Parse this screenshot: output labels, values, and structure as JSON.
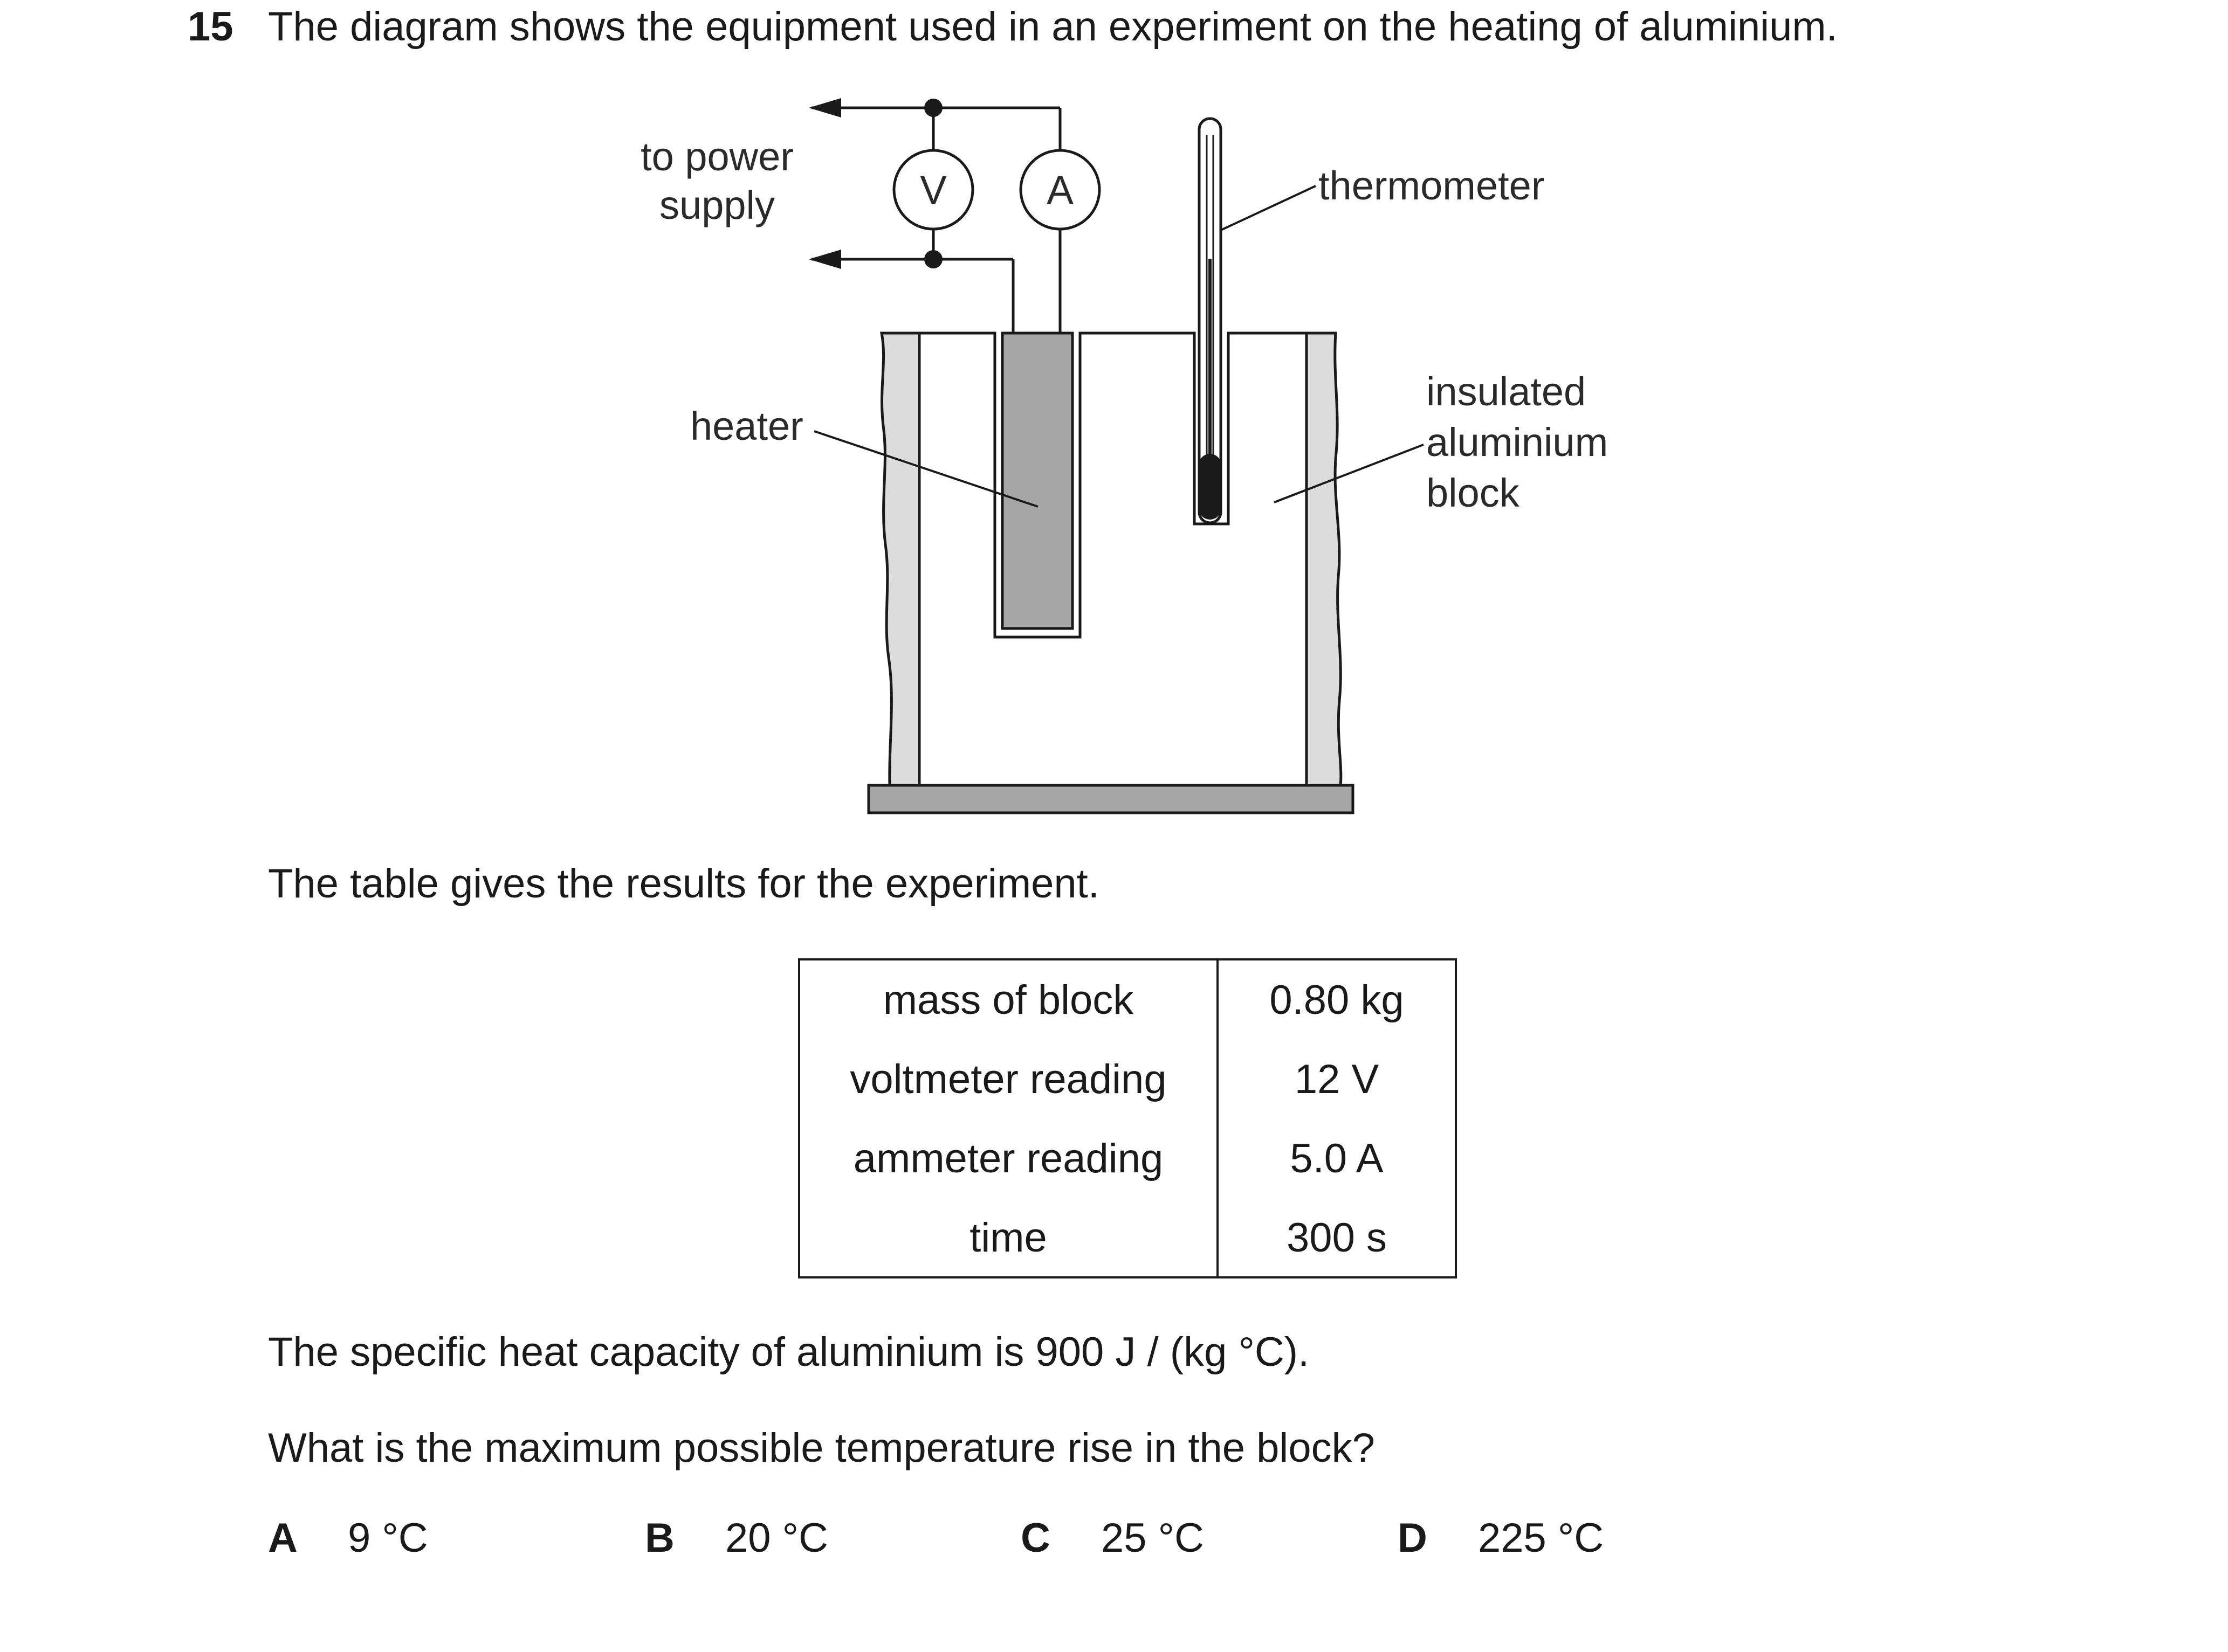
{
  "question": {
    "number": "15",
    "text": "The diagram shows the equipment used in an experiment on the heating of aluminium."
  },
  "diagram": {
    "labels": {
      "power_supply_line1": "to power",
      "power_supply_line2": "supply",
      "voltmeter": "V",
      "ammeter": "A",
      "thermometer": "thermometer",
      "heater": "heater",
      "block_line1": "insulated",
      "block_line2": "aluminium",
      "block_line3": "block"
    }
  },
  "table_intro": "The table gives the results for the experiment.",
  "results_table": {
    "rows": [
      {
        "label": "mass of block",
        "value": "0.80 kg"
      },
      {
        "label": "voltmeter reading",
        "value": "12 V"
      },
      {
        "label": "ammeter reading",
        "value": "5.0 A"
      },
      {
        "label": "time",
        "value": "300 s"
      }
    ]
  },
  "info_text": "The specific heat capacity of aluminium is 900 J / (kg °C).",
  "prompt": "What is the maximum possible temperature rise in the block?",
  "options": [
    {
      "letter": "A",
      "value": "9 °C"
    },
    {
      "letter": "B",
      "value": "20 °C"
    },
    {
      "letter": "C",
      "value": "25 °C"
    },
    {
      "letter": "D",
      "value": "225 °C"
    }
  ]
}
